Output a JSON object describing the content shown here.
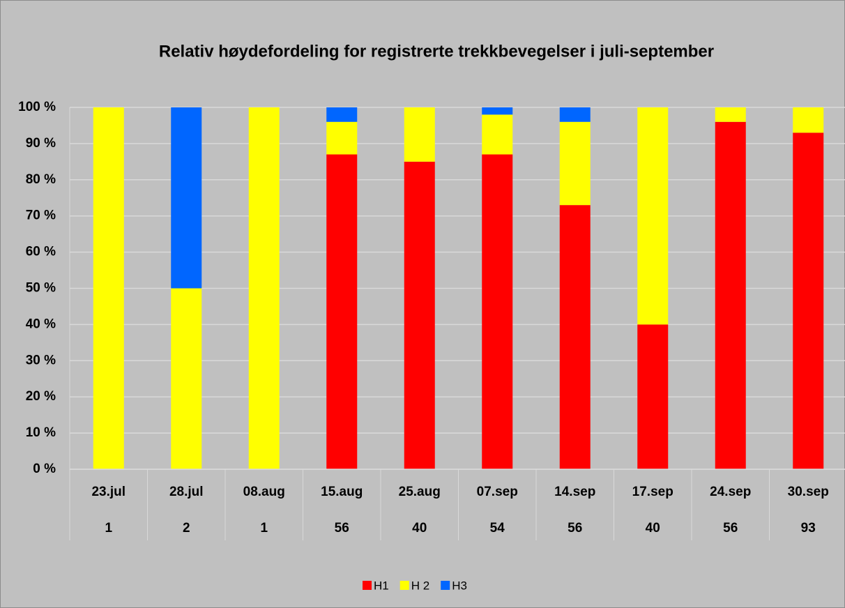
{
  "chart_data": {
    "type": "bar",
    "stacked": true,
    "title": "Relativ høydefordeling for registrerte trekkbevegelser i juli-september",
    "categories": [
      "23.jul",
      "28.jul",
      "08.aug",
      "15.aug",
      "25.aug",
      "07.sep",
      "14.sep",
      "17.sep",
      "24.sep",
      "30.sep"
    ],
    "category_counts": [
      1,
      2,
      1,
      56,
      40,
      54,
      56,
      40,
      56,
      93
    ],
    "series": [
      {
        "name": "H1",
        "color": "#ff0000",
        "values": [
          0,
          0,
          0,
          87,
          85,
          87,
          73,
          40,
          96,
          93
        ]
      },
      {
        "name": "H 2",
        "color": "#ffff00",
        "values": [
          100,
          50,
          100,
          9,
          15,
          11,
          23,
          60,
          4,
          7
        ]
      },
      {
        "name": "H3",
        "color": "#0066ff",
        "values": [
          0,
          50,
          0,
          4,
          0,
          2,
          4,
          0,
          0,
          0
        ]
      }
    ],
    "ylim": [
      0,
      100
    ],
    "yticks": [
      {
        "value": 0,
        "label": "0 %"
      },
      {
        "value": 10,
        "label": "10 %"
      },
      {
        "value": 20,
        "label": "20 %"
      },
      {
        "value": 30,
        "label": "30 %"
      },
      {
        "value": 40,
        "label": "40 %"
      },
      {
        "value": 50,
        "label": "50 %"
      },
      {
        "value": 60,
        "label": "60 %"
      },
      {
        "value": 70,
        "label": "70 %"
      },
      {
        "value": 80,
        "label": "80 %"
      },
      {
        "value": 90,
        "label": "90 %"
      },
      {
        "value": 100,
        "label": "100 %"
      }
    ],
    "grid": true,
    "legend": "bottom"
  }
}
